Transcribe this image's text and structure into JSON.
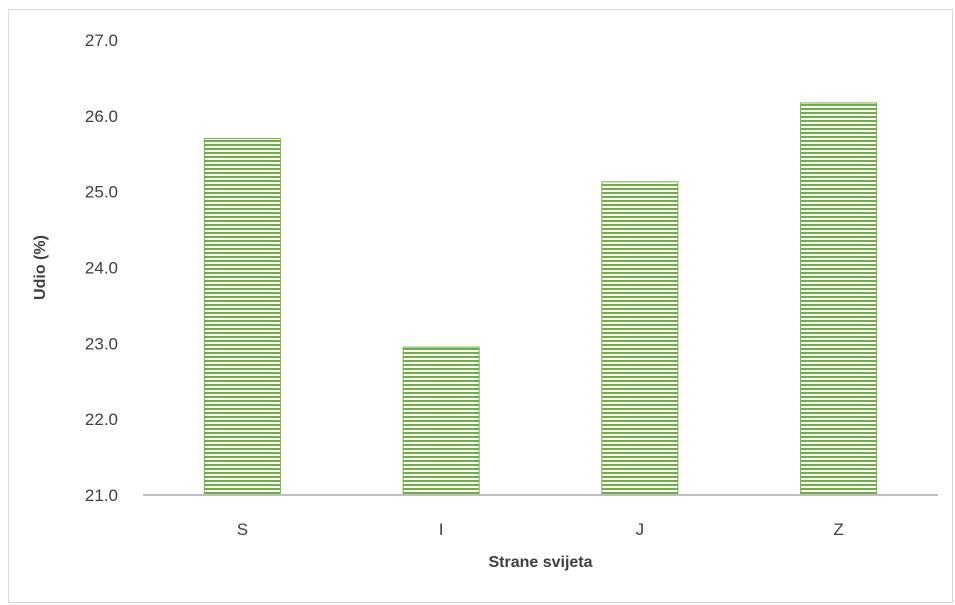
{
  "chart_data": {
    "type": "bar",
    "title": "",
    "xlabel": "Strane svijeta",
    "ylabel": "Udio (%)",
    "categories": [
      "S",
      "I",
      "J",
      "Z"
    ],
    "values": [
      25.7,
      22.95,
      25.13,
      26.17
    ],
    "ylim": [
      21.0,
      27.0
    ],
    "yticks": [
      "21.0",
      "22.0",
      "23.0",
      "24.0",
      "25.0",
      "26.0",
      "27.0"
    ],
    "grid": false,
    "legend": "none",
    "bar_color": "#70ad47",
    "bar_stripe_color": "#ffffff",
    "axis_color": "#bfbfbf"
  }
}
